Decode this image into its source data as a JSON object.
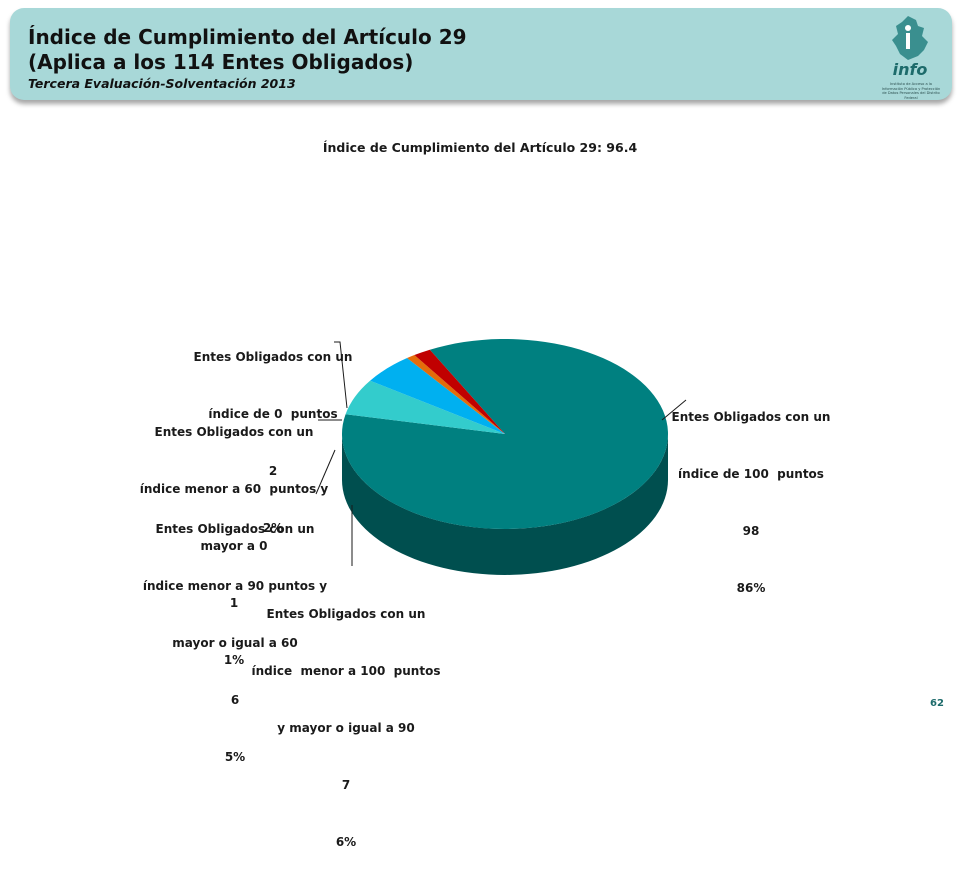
{
  "header": {
    "title_line1": "Índice de Cumplimiento del Artículo 29",
    "title_line2": "(Aplica a los 114 Entes Obligados)",
    "subtitle": "Tercera Evaluación-Solventación 2013",
    "logo": {
      "text": "info",
      "small_text": "Instituto de Acceso a la Información Pública y Protección de Datos Personales del Distrito Federal"
    }
  },
  "chart_data": {
    "type": "pie",
    "style": "3d",
    "title": "Índice de Cumplimiento del Artículo 29: 96.4",
    "slices": [
      {
        "label": "Entes Obligados con un índice de 100 puntos",
        "value": 98,
        "percent": "86%",
        "color": "#008080"
      },
      {
        "label": "Entes Obligados con un índice menor a 100 puntos y mayor o igual a 90",
        "value": 7,
        "percent": "6%",
        "color": "#33cccc"
      },
      {
        "label": "Entes Obligados con un índice menor a 90 puntos y mayor o igual a 60",
        "value": 6,
        "percent": "5%",
        "color": "#00b0f0"
      },
      {
        "label": "Entes Obligados con un índice menor a 60 puntos y mayor a 0",
        "value": 1,
        "percent": "1%",
        "color": "#e46c0a"
      },
      {
        "label": "Entes Obligados con un índice de 0 puntos",
        "value": 2,
        "percent": "2%",
        "color": "#c00000"
      }
    ]
  },
  "labels": {
    "s100": {
      "l1": "Entes Obligados con un",
      "l2": "índice de 100  puntos",
      "count": "98",
      "pct": "86%"
    },
    "s90": {
      "l1": "Entes Obligados con un",
      "l2": "índice  menor a 100  puntos",
      "l3": "y mayor o igual a 90",
      "count": "7",
      "pct": "6%"
    },
    "s60": {
      "l1": "Entes Obligados con un",
      "l2": "índice menor a 90 puntos y",
      "l3": "mayor o igual a 60",
      "count": "6",
      "pct": "5%"
    },
    "s0p": {
      "l1": "Entes Obligados con un",
      "l2": "índice menor a 60  puntos y",
      "l3": "mayor a 0",
      "count": "1",
      "pct": "1%"
    },
    "s0": {
      "l1": "Entes Obligados con un",
      "l2": "índice de 0  puntos",
      "count": "2",
      "pct": "2%"
    }
  },
  "footer": {
    "page_number": "62"
  }
}
